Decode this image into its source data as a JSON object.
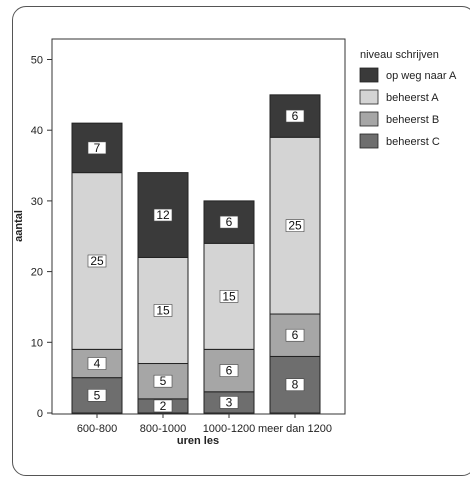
{
  "chart_data": {
    "type": "bar",
    "stacked": true,
    "categories": [
      "600-800",
      "800-1000",
      "1000-1200",
      "meer dan 1200"
    ],
    "series": [
      {
        "name": "beheerst C",
        "values": [
          5,
          2,
          3,
          8
        ],
        "color": "#6e6e6e"
      },
      {
        "name": "beheerst B",
        "values": [
          4,
          5,
          6,
          6
        ],
        "color": "#a6a6a6"
      },
      {
        "name": "beheerst A",
        "values": [
          25,
          15,
          15,
          25
        ],
        "color": "#d4d4d4"
      },
      {
        "name": "op weg naar A",
        "values": [
          7,
          12,
          6,
          6
        ],
        "color": "#3a3a3a"
      }
    ],
    "xlabel": "uren les",
    "ylabel": "aantal",
    "ylim": [
      0,
      52
    ],
    "yticks": [
      0,
      10,
      20,
      30,
      40,
      50
    ],
    "legend": {
      "title": "niveau schrijven",
      "placement": "top-right",
      "order": [
        "op weg naar A",
        "beheerst A",
        "beheerst B",
        "beheerst C"
      ]
    },
    "grid": false
  }
}
